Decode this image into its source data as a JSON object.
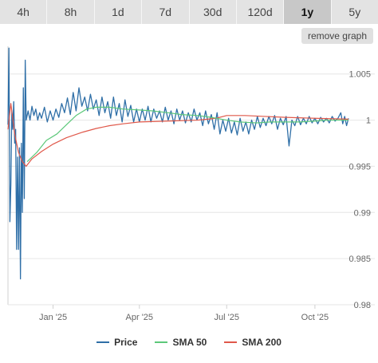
{
  "tabs": [
    {
      "label": "4h",
      "active": false
    },
    {
      "label": "8h",
      "active": false
    },
    {
      "label": "1d",
      "active": false
    },
    {
      "label": "7d",
      "active": false
    },
    {
      "label": "30d",
      "active": false
    },
    {
      "label": "120d",
      "active": false
    },
    {
      "label": "1y",
      "active": true
    },
    {
      "label": "5y",
      "active": false
    }
  ],
  "remove_graph_label": "remove graph",
  "colors": {
    "price": "#2f6fa7",
    "sma50": "#5cc87a",
    "sma200": "#e0584a",
    "grid": "#e6e6e6",
    "axis": "#d0d0d0",
    "tick_text": "#666666"
  },
  "chart_data": {
    "type": "line",
    "ylim": [
      0.98,
      1.008
    ],
    "xlim": [
      "2024-11-15",
      "2025-11-05"
    ],
    "y_ticks": [
      {
        "value": 0.98,
        "label": "0.98"
      },
      {
        "value": 0.985,
        "label": "0.985"
      },
      {
        "value": 0.99,
        "label": "0.99"
      },
      {
        "value": 0.995,
        "label": "0.995"
      },
      {
        "value": 1.0,
        "label": "1"
      },
      {
        "value": 1.005,
        "label": "1.005"
      }
    ],
    "x_ticks": [
      {
        "value": "2025-01-01",
        "label": "Jan '25"
      },
      {
        "value": "2025-04-01",
        "label": "Apr '25"
      },
      {
        "value": "2025-07-01",
        "label": "Jul '25"
      },
      {
        "value": "2025-10-01",
        "label": "Oct '25"
      }
    ],
    "grid": true,
    "legend_position": "bottom",
    "series": [
      {
        "name": "Price",
        "key": "price",
        "points": [
          [
            "2024-11-15",
            0.9995
          ],
          [
            "2024-11-16",
            1.0078
          ],
          [
            "2024-11-17",
            0.989
          ],
          [
            "2024-11-18",
            0.993
          ],
          [
            "2024-11-19",
            1.001
          ],
          [
            "2024-11-20",
            0.999
          ],
          [
            "2024-11-21",
            1.002
          ],
          [
            "2024-11-22",
            0.9975
          ],
          [
            "2024-11-23",
            0.999
          ],
          [
            "2024-11-24",
            0.986
          ],
          [
            "2024-11-25",
            0.996
          ],
          [
            "2024-11-26",
            0.986
          ],
          [
            "2024-11-27",
            0.997
          ],
          [
            "2024-11-28",
            0.9828
          ],
          [
            "2024-11-29",
            0.9975
          ],
          [
            "2024-11-30",
            0.99
          ],
          [
            "2024-12-01",
            1.0035
          ],
          [
            "2024-12-02",
            0.9915
          ],
          [
            "2024-12-03",
            1.0065
          ],
          [
            "2024-12-04",
            1.0
          ],
          [
            "2024-12-06",
            1.001
          ],
          [
            "2024-12-08",
            1.0
          ],
          [
            "2024-12-10",
            1.0015
          ],
          [
            "2024-12-12",
            1.0005
          ],
          [
            "2024-12-14",
            1.0012
          ],
          [
            "2024-12-16",
            1.0
          ],
          [
            "2024-12-18",
            1.0008
          ],
          [
            "2024-12-20",
            1.0002
          ],
          [
            "2024-12-23",
            1.0014
          ],
          [
            "2024-12-26",
            0.9998
          ],
          [
            "2024-12-29",
            1.001
          ],
          [
            "2025-01-01",
            1.0
          ],
          [
            "2025-01-04",
            1.0012
          ],
          [
            "2025-01-07",
            1.0003
          ],
          [
            "2025-01-10",
            1.0018
          ],
          [
            "2025-01-13",
            1.0008
          ],
          [
            "2025-01-16",
            1.0024
          ],
          [
            "2025-01-19",
            1.0006
          ],
          [
            "2025-01-22",
            1.003
          ],
          [
            "2025-01-25",
            1.001
          ],
          [
            "2025-01-28",
            1.0035
          ],
          [
            "2025-01-31",
            1.0015
          ],
          [
            "2025-02-03",
            1.0025
          ],
          [
            "2025-02-06",
            1.001
          ],
          [
            "2025-02-09",
            1.0028
          ],
          [
            "2025-02-12",
            1.0012
          ],
          [
            "2025-02-15",
            1.0022
          ],
          [
            "2025-02-18",
            1.0005
          ],
          [
            "2025-02-21",
            1.0025
          ],
          [
            "2025-02-24",
            1.0008
          ],
          [
            "2025-02-27",
            1.002
          ],
          [
            "2025-03-02",
            1.0002
          ],
          [
            "2025-03-05",
            1.0025
          ],
          [
            "2025-03-08",
            1.0005
          ],
          [
            "2025-03-11",
            1.0018
          ],
          [
            "2025-03-14",
            0.9998
          ],
          [
            "2025-03-17",
            1.0022
          ],
          [
            "2025-03-20",
            1.0004
          ],
          [
            "2025-03-23",
            1.0016
          ],
          [
            "2025-03-26",
            0.9998
          ],
          [
            "2025-03-29",
            1.0012
          ],
          [
            "2025-04-01",
            0.9998
          ],
          [
            "2025-04-04",
            1.0012
          ],
          [
            "2025-04-07",
            1.0
          ],
          [
            "2025-04-10",
            1.0015
          ],
          [
            "2025-04-13",
            0.9998
          ],
          [
            "2025-04-16",
            1.0012
          ],
          [
            "2025-04-19",
            1.0002
          ],
          [
            "2025-04-22",
            1.001
          ],
          [
            "2025-04-25",
            0.9998
          ],
          [
            "2025-04-28",
            1.0014
          ],
          [
            "2025-05-01",
            1.0
          ],
          [
            "2025-05-04",
            1.001
          ],
          [
            "2025-05-07",
            0.9996
          ],
          [
            "2025-05-10",
            1.0012
          ],
          [
            "2025-05-13",
            1.0
          ],
          [
            "2025-05-16",
            1.001
          ],
          [
            "2025-05-19",
            0.9997
          ],
          [
            "2025-05-22",
            1.0008
          ],
          [
            "2025-05-25",
            0.9998
          ],
          [
            "2025-05-28",
            1.0012
          ],
          [
            "2025-05-31",
            1.0
          ],
          [
            "2025-06-03",
            1.0008
          ],
          [
            "2025-06-06",
            0.9994
          ],
          [
            "2025-06-09",
            1.001
          ],
          [
            "2025-06-12",
            0.9996
          ],
          [
            "2025-06-15",
            1.0006
          ],
          [
            "2025-06-18",
            0.999
          ],
          [
            "2025-06-21",
            1.0008
          ],
          [
            "2025-06-24",
            0.9985
          ],
          [
            "2025-06-27",
            1.0
          ],
          [
            "2025-06-30",
            0.9988
          ],
          [
            "2025-07-03",
            1.0002
          ],
          [
            "2025-07-06",
            0.9986
          ],
          [
            "2025-07-09",
            0.9998
          ],
          [
            "2025-07-12",
            0.9984
          ],
          [
            "2025-07-15",
            1.0002
          ],
          [
            "2025-07-18",
            0.9988
          ],
          [
            "2025-07-21",
            0.9998
          ],
          [
            "2025-07-24",
            0.9985
          ],
          [
            "2025-07-27",
            1.0
          ],
          [
            "2025-07-30",
            0.999
          ],
          [
            "2025-08-02",
            1.0004
          ],
          [
            "2025-08-05",
            0.9992
          ],
          [
            "2025-08-08",
            1.0002
          ],
          [
            "2025-08-11",
            0.9994
          ],
          [
            "2025-08-14",
            1.0004
          ],
          [
            "2025-08-17",
            0.9996
          ],
          [
            "2025-08-20",
            1.0005
          ],
          [
            "2025-08-23",
            0.999
          ],
          [
            "2025-08-26",
            1.0002
          ],
          [
            "2025-08-29",
            0.9995
          ],
          [
            "2025-09-01",
            1.0004
          ],
          [
            "2025-09-04",
            0.9972
          ],
          [
            "2025-09-07",
            1.0
          ],
          [
            "2025-09-10",
            0.9994
          ],
          [
            "2025-09-13",
            1.0004
          ],
          [
            "2025-09-16",
            0.9995
          ],
          [
            "2025-09-19",
            1.0002
          ],
          [
            "2025-09-22",
            0.9996
          ],
          [
            "2025-09-25",
            1.0004
          ],
          [
            "2025-09-28",
            0.9997
          ],
          [
            "2025-10-01",
            1.0002
          ],
          [
            "2025-10-04",
            0.9996
          ],
          [
            "2025-10-07",
            1.0003
          ],
          [
            "2025-10-10",
            0.9998
          ],
          [
            "2025-10-13",
            1.0002
          ],
          [
            "2025-10-16",
            0.9997
          ],
          [
            "2025-10-19",
            1.0004
          ],
          [
            "2025-10-22",
            0.9999
          ],
          [
            "2025-10-25",
            1.0002
          ],
          [
            "2025-10-28",
            1.0008
          ],
          [
            "2025-10-30",
            0.9996
          ],
          [
            "2025-11-01",
            1.0004
          ],
          [
            "2025-11-03",
            0.9994
          ],
          [
            "2025-11-05",
            1.0002
          ]
        ]
      },
      {
        "name": "SMA 50",
        "key": "sma50",
        "points": [
          [
            "2024-12-05",
            0.9955
          ],
          [
            "2024-12-15",
            0.9965
          ],
          [
            "2024-12-25",
            0.9978
          ],
          [
            "2025-01-05",
            0.9985
          ],
          [
            "2025-01-15",
            0.9995
          ],
          [
            "2025-01-25",
            1.0005
          ],
          [
            "2025-02-05",
            1.0012
          ],
          [
            "2025-02-15",
            1.0014
          ],
          [
            "2025-03-01",
            1.0014
          ],
          [
            "2025-03-15",
            1.0012
          ],
          [
            "2025-04-01",
            1.0011
          ],
          [
            "2025-04-15",
            1.001
          ],
          [
            "2025-05-01",
            1.0008
          ],
          [
            "2025-05-15",
            1.0006
          ],
          [
            "2025-06-01",
            1.0005
          ],
          [
            "2025-06-15",
            1.0003
          ],
          [
            "2025-07-01",
            1.0
          ],
          [
            "2025-07-15",
            0.9998
          ],
          [
            "2025-08-01",
            0.9997
          ],
          [
            "2025-08-15",
            0.9998
          ],
          [
            "2025-09-01",
            0.9998
          ],
          [
            "2025-09-15",
            0.9998
          ],
          [
            "2025-10-01",
            0.9999
          ],
          [
            "2025-10-15",
            1.0
          ],
          [
            "2025-11-05",
            1.0
          ]
        ]
      },
      {
        "name": "SMA 200",
        "key": "sma200",
        "points": [
          [
            "2024-11-15",
            0.999
          ],
          [
            "2024-11-18",
            1.0018
          ],
          [
            "2024-11-22",
            0.9985
          ],
          [
            "2024-11-26",
            0.9965
          ],
          [
            "2024-11-30",
            0.9955
          ],
          [
            "2024-12-04",
            0.995
          ],
          [
            "2024-12-10",
            0.9958
          ],
          [
            "2024-12-20",
            0.9966
          ],
          [
            "2025-01-01",
            0.9974
          ],
          [
            "2025-01-15",
            0.9981
          ],
          [
            "2025-02-01",
            0.9987
          ],
          [
            "2025-02-15",
            0.9991
          ],
          [
            "2025-03-01",
            0.9994
          ],
          [
            "2025-03-15",
            0.9996
          ],
          [
            "2025-04-01",
            0.9998
          ],
          [
            "2025-05-01",
            0.9999
          ],
          [
            "2025-06-01",
            1.0
          ],
          [
            "2025-06-20",
            1.0002
          ],
          [
            "2025-07-01",
            1.0005
          ],
          [
            "2025-07-20",
            1.0005
          ],
          [
            "2025-08-10",
            1.0004
          ],
          [
            "2025-09-01",
            1.0003
          ],
          [
            "2025-10-01",
            1.0002
          ],
          [
            "2025-11-05",
            1.0001
          ]
        ]
      }
    ]
  }
}
